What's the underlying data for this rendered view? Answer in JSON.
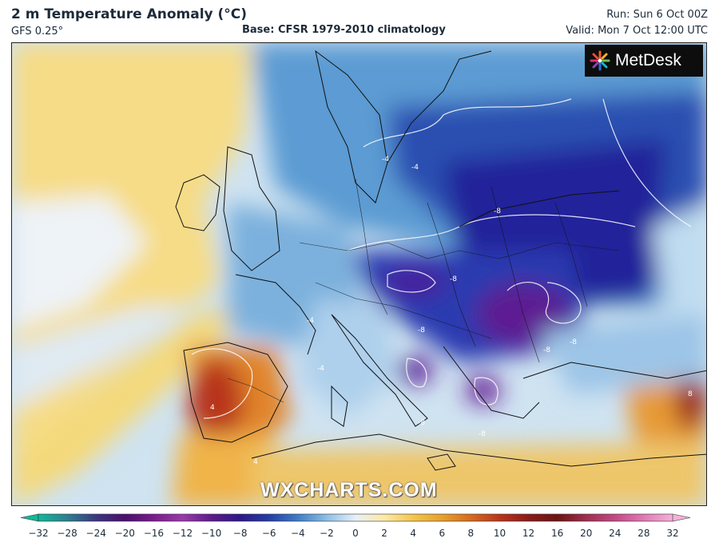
{
  "header": {
    "title": "2 m Temperature Anomaly (°C)",
    "model": "GFS 0.25°",
    "base": "Base: CFSR 1979-2010 climatology",
    "run": "Run: Sun 6 Oct 00Z",
    "valid": "Valid: Mon 7 Oct 12:00 UTC"
  },
  "logo": {
    "text": "MetDesk",
    "icon": "metdesk-star-icon"
  },
  "watermark": "WXCHARTS.COM",
  "map": {
    "contour_labels": [
      "-4",
      "-4",
      "-4",
      "-4",
      "-8",
      "-8",
      "-8",
      "-8",
      "-8",
      "-8",
      "-8",
      "4",
      "4",
      "8"
    ]
  },
  "colorbar": {
    "ticks": [
      "−32",
      "−28",
      "−24",
      "−20",
      "−16",
      "−12",
      "−10",
      "−8",
      "−6",
      "−4",
      "−2",
      "0",
      "2",
      "4",
      "6",
      "8",
      "10",
      "12",
      "16",
      "20",
      "24",
      "28",
      "32"
    ],
    "colors": [
      "#12b89a",
      "#2e7f90",
      "#3d3680",
      "#4b0f6b",
      "#7a1c8f",
      "#9b3aaa",
      "#5d1a8c",
      "#2e1788",
      "#253ea6",
      "#3f7dc7",
      "#8dbfe6",
      "#e8f0f7",
      "#fde9a8",
      "#f3c54b",
      "#e7a02c",
      "#d66a1f",
      "#b8351c",
      "#8a1b1b",
      "#6c1414",
      "#a03050",
      "#c24a83",
      "#e07ab6",
      "#f4b3d8"
    ]
  }
}
